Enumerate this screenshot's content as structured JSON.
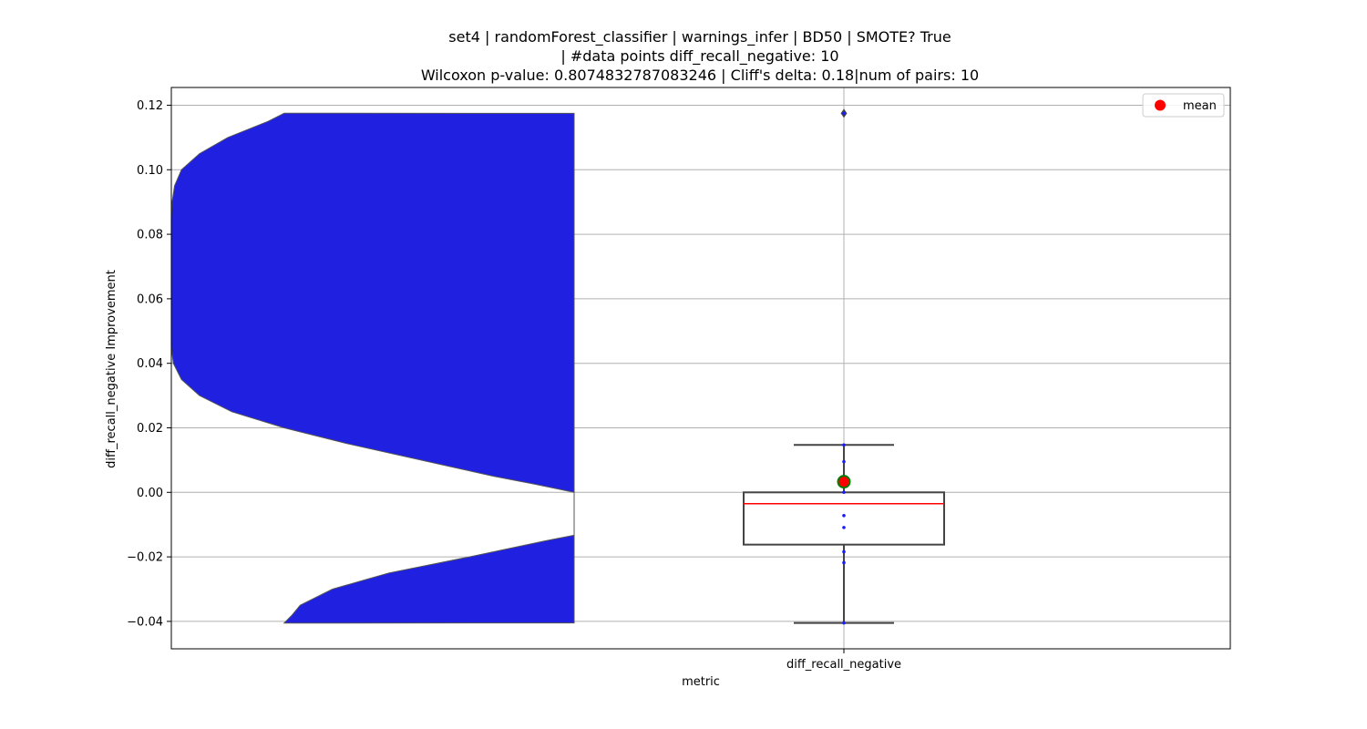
{
  "chart_data": {
    "type": "violin+box",
    "title_lines": [
      "set4 | randomForest_classifier | warnings_infer | BD50 | SMOTE? True",
      "| #data points diff_recall_negative: 10",
      "Wilcoxon p-value: 0.8074832787083246 | Cliff's delta: 0.18|num of pairs: 10"
    ],
    "xlabel": "metric",
    "ylabel": "diff_recall_negative Improvement",
    "categories": [
      "diff_recall_negative"
    ],
    "ylim": [
      -0.0485,
      0.1255
    ],
    "yticks": [
      0.12,
      0.1,
      0.08,
      0.06,
      0.04,
      0.02,
      0.0,
      -0.02,
      -0.04
    ],
    "ytick_labels": [
      "0.12",
      "0.10",
      "0.08",
      "0.06",
      "0.04",
      "0.02",
      "0.00",
      "−0.02",
      "−0.04"
    ],
    "grid": true,
    "legend": {
      "label": "mean",
      "marker_color": "#ff0000",
      "location": "upper right"
    },
    "colors": {
      "violin_fill": "#2020e0",
      "violin_edge": "#555555",
      "box_edge": "#444444",
      "median": "#ff0000",
      "points": "#1a1aff",
      "mean_fill": "#ff0000",
      "mean_edge": "#008000",
      "grid": "#b0b0b0"
    },
    "box": {
      "whisker_low": -0.0405,
      "q1": -0.0162,
      "median": -0.0035,
      "q3": 0.0,
      "whisker_high": 0.0147,
      "outliers": [
        0.1175
      ]
    },
    "mean": 0.0033,
    "points": [
      0.0147,
      0.0095,
      0.0035,
      0.0,
      -0.0072,
      -0.0109,
      -0.0184,
      -0.0218,
      -0.0405,
      0.1175
    ],
    "violin_profile": [
      [
        0.1175,
        0.72
      ],
      [
        0.115,
        0.76
      ],
      [
        0.11,
        0.86
      ],
      [
        0.105,
        0.93
      ],
      [
        0.1,
        0.975
      ],
      [
        0.095,
        0.992
      ],
      [
        0.09,
        0.998
      ],
      [
        0.085,
        1.0
      ],
      [
        0.08,
        1.0
      ],
      [
        0.07,
        1.0
      ],
      [
        0.06,
        1.0
      ],
      [
        0.05,
        1.0
      ],
      [
        0.045,
        1.0
      ],
      [
        0.04,
        0.995
      ],
      [
        0.035,
        0.975
      ],
      [
        0.03,
        0.93
      ],
      [
        0.025,
        0.85
      ],
      [
        0.02,
        0.72
      ],
      [
        0.015,
        0.56
      ],
      [
        0.01,
        0.38
      ],
      [
        0.005,
        0.2
      ],
      [
        0.0026,
        0.1
      ],
      [
        0.0,
        0.0
      ],
      [
        -0.005,
        0.0
      ],
      [
        -0.01,
        0.0
      ],
      [
        -0.0133,
        0.0
      ],
      [
        -0.015,
        0.07
      ],
      [
        -0.02,
        0.26
      ],
      [
        -0.025,
        0.46
      ],
      [
        -0.03,
        0.6
      ],
      [
        -0.035,
        0.68
      ],
      [
        -0.038,
        0.7
      ],
      [
        -0.0405,
        0.72
      ]
    ]
  }
}
